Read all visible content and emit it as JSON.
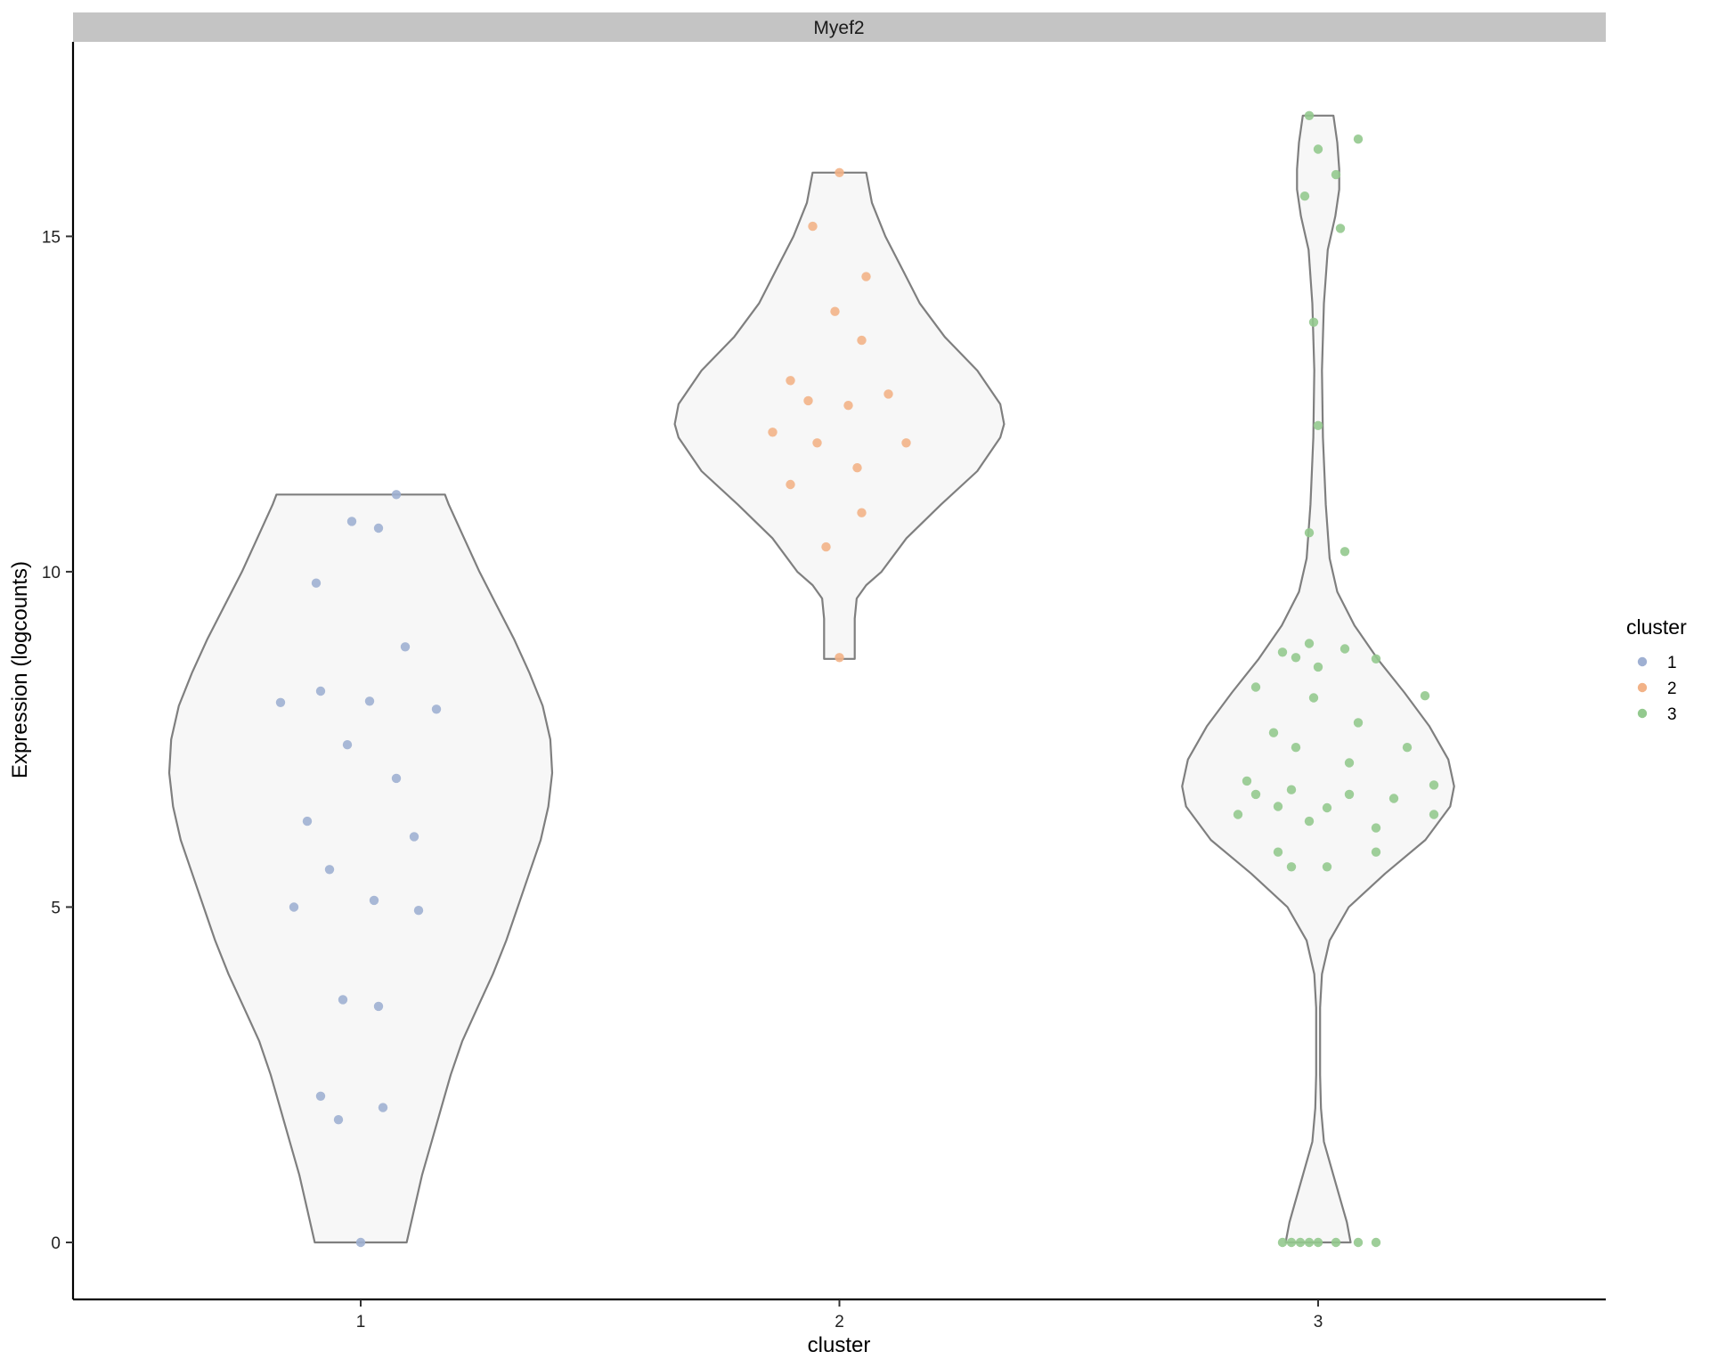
{
  "chart_data": {
    "type": "violin",
    "facet_title": "Myef2",
    "xlabel": "cluster",
    "ylabel": "Expression (logcounts)",
    "categories": [
      "1",
      "2",
      "3"
    ],
    "yticks": [
      0,
      5,
      10,
      15
    ],
    "ylim": [
      -0.85,
      17.9
    ],
    "grid": false,
    "legend": {
      "title": "cluster",
      "position": "right",
      "items": [
        {
          "label": "1",
          "color": "#9fb0d2"
        },
        {
          "label": "2",
          "color": "#f2b287"
        },
        {
          "label": "3",
          "color": "#93c98e"
        }
      ]
    },
    "violin_fill": "#f7f7f7",
    "violin_stroke": "#7f7f7f",
    "series": [
      {
        "name": "1",
        "color": "#9fb0d2",
        "violin": {
          "ymin": 0.0,
          "ymax": 11.15,
          "profile": [
            [
              0.0,
              0.24
            ],
            [
              0.5,
              0.28
            ],
            [
              1.0,
              0.32
            ],
            [
              1.5,
              0.37
            ],
            [
              2.0,
              0.42
            ],
            [
              2.5,
              0.47
            ],
            [
              3.0,
              0.53
            ],
            [
              3.5,
              0.61
            ],
            [
              4.0,
              0.69
            ],
            [
              4.5,
              0.76
            ],
            [
              5.0,
              0.82
            ],
            [
              5.5,
              0.88
            ],
            [
              6.0,
              0.94
            ],
            [
              6.5,
              0.98
            ],
            [
              7.0,
              1.0
            ],
            [
              7.5,
              0.99
            ],
            [
              8.0,
              0.95
            ],
            [
              8.5,
              0.88
            ],
            [
              9.0,
              0.8
            ],
            [
              9.5,
              0.71
            ],
            [
              10.0,
              0.62
            ],
            [
              10.5,
              0.54
            ],
            [
              11.0,
              0.46
            ],
            [
              11.15,
              0.44
            ]
          ]
        },
        "points": [
          [
            -0.18,
            8.05
          ],
          [
            -0.15,
            5.0
          ],
          [
            -0.12,
            6.28
          ],
          [
            -0.1,
            9.83
          ],
          [
            -0.09,
            8.22
          ],
          [
            -0.09,
            2.18
          ],
          [
            -0.07,
            5.56
          ],
          [
            -0.05,
            1.83
          ],
          [
            -0.04,
            3.62
          ],
          [
            -0.03,
            7.42
          ],
          [
            -0.02,
            10.75
          ],
          [
            0.0,
            0.0
          ],
          [
            0.02,
            8.07
          ],
          [
            0.03,
            5.1
          ],
          [
            0.04,
            3.52
          ],
          [
            0.04,
            10.65
          ],
          [
            0.05,
            2.01
          ],
          [
            0.08,
            6.92
          ],
          [
            0.08,
            11.15
          ],
          [
            0.1,
            8.88
          ],
          [
            0.12,
            6.05
          ],
          [
            0.13,
            4.95
          ],
          [
            0.17,
            7.95
          ]
        ]
      },
      {
        "name": "2",
        "color": "#f2b287",
        "violin": {
          "ymin": 8.7,
          "ymax": 15.95,
          "profile": [
            [
              8.7,
              0.08
            ],
            [
              9.0,
              0.08
            ],
            [
              9.3,
              0.08
            ],
            [
              9.6,
              0.09
            ],
            [
              9.8,
              0.14
            ],
            [
              10.0,
              0.22
            ],
            [
              10.5,
              0.35
            ],
            [
              11.0,
              0.53
            ],
            [
              11.5,
              0.72
            ],
            [
              12.0,
              0.84
            ],
            [
              12.2,
              0.86
            ],
            [
              12.5,
              0.84
            ],
            [
              13.0,
              0.72
            ],
            [
              13.5,
              0.55
            ],
            [
              14.0,
              0.42
            ],
            [
              14.5,
              0.33
            ],
            [
              15.0,
              0.24
            ],
            [
              15.5,
              0.17
            ],
            [
              15.95,
              0.14
            ]
          ]
        },
        "points": [
          [
            -0.15,
            12.08
          ],
          [
            -0.11,
            11.3
          ],
          [
            -0.11,
            12.85
          ],
          [
            -0.07,
            12.55
          ],
          [
            -0.06,
            15.15
          ],
          [
            -0.05,
            11.92
          ],
          [
            -0.03,
            10.37
          ],
          [
            -0.01,
            13.88
          ],
          [
            0.0,
            8.72
          ],
          [
            0.0,
            15.95
          ],
          [
            0.02,
            12.48
          ],
          [
            0.04,
            11.55
          ],
          [
            0.05,
            13.45
          ],
          [
            0.05,
            10.88
          ],
          [
            0.06,
            14.4
          ],
          [
            0.11,
            12.65
          ],
          [
            0.15,
            11.92
          ]
        ]
      },
      {
        "name": "3",
        "color": "#93c98e",
        "violin": {
          "ymin": 0.0,
          "ymax": 16.8,
          "profile": [
            [
              0.0,
              0.17
            ],
            [
              0.3,
              0.15
            ],
            [
              0.6,
              0.12
            ],
            [
              1.0,
              0.08
            ],
            [
              1.5,
              0.03
            ],
            [
              2.0,
              0.015
            ],
            [
              2.5,
              0.01
            ],
            [
              3.0,
              0.01
            ],
            [
              3.5,
              0.01
            ],
            [
              4.0,
              0.02
            ],
            [
              4.5,
              0.06
            ],
            [
              5.0,
              0.16
            ],
            [
              5.5,
              0.35
            ],
            [
              6.0,
              0.56
            ],
            [
              6.5,
              0.69
            ],
            [
              6.8,
              0.71
            ],
            [
              7.2,
              0.68
            ],
            [
              7.7,
              0.58
            ],
            [
              8.2,
              0.45
            ],
            [
              8.7,
              0.31
            ],
            [
              9.2,
              0.19
            ],
            [
              9.7,
              0.1
            ],
            [
              10.2,
              0.06
            ],
            [
              11.0,
              0.04
            ],
            [
              12.0,
              0.025
            ],
            [
              13.0,
              0.02
            ],
            [
              14.0,
              0.03
            ],
            [
              14.8,
              0.05
            ],
            [
              15.3,
              0.09
            ],
            [
              15.7,
              0.11
            ],
            [
              16.0,
              0.11
            ],
            [
              16.4,
              0.1
            ],
            [
              16.8,
              0.08
            ]
          ]
        },
        "points": [
          [
            -0.18,
            6.38
          ],
          [
            -0.16,
            6.88
          ],
          [
            -0.14,
            6.68
          ],
          [
            -0.14,
            8.28
          ],
          [
            -0.1,
            7.6
          ],
          [
            -0.09,
            5.82
          ],
          [
            -0.09,
            6.5
          ],
          [
            -0.08,
            8.8
          ],
          [
            -0.08,
            0.0
          ],
          [
            -0.06,
            5.6
          ],
          [
            -0.06,
            0.0
          ],
          [
            -0.06,
            6.75
          ],
          [
            -0.05,
            7.38
          ],
          [
            -0.05,
            8.72
          ],
          [
            -0.04,
            0.0
          ],
          [
            -0.03,
            15.6
          ],
          [
            -0.02,
            16.8
          ],
          [
            -0.02,
            10.58
          ],
          [
            -0.02,
            8.93
          ],
          [
            -0.02,
            6.28
          ],
          [
            -0.02,
            0.0
          ],
          [
            -0.01,
            8.12
          ],
          [
            -0.01,
            13.72
          ],
          [
            0.0,
            16.3
          ],
          [
            0.0,
            12.18
          ],
          [
            0.0,
            8.58
          ],
          [
            0.0,
            0.0
          ],
          [
            0.02,
            6.48
          ],
          [
            0.02,
            5.6
          ],
          [
            0.04,
            0.0
          ],
          [
            0.04,
            15.92
          ],
          [
            0.05,
            15.12
          ],
          [
            0.06,
            10.3
          ],
          [
            0.06,
            8.85
          ],
          [
            0.07,
            6.68
          ],
          [
            0.07,
            7.15
          ],
          [
            0.09,
            7.75
          ],
          [
            0.09,
            0.0
          ],
          [
            0.09,
            16.45
          ],
          [
            0.13,
            8.7
          ],
          [
            0.13,
            6.18
          ],
          [
            0.13,
            5.82
          ],
          [
            0.13,
            0.0
          ],
          [
            0.17,
            6.62
          ],
          [
            0.2,
            7.38
          ],
          [
            0.24,
            8.15
          ],
          [
            0.26,
            6.82
          ],
          [
            0.26,
            6.38
          ]
        ]
      }
    ]
  }
}
